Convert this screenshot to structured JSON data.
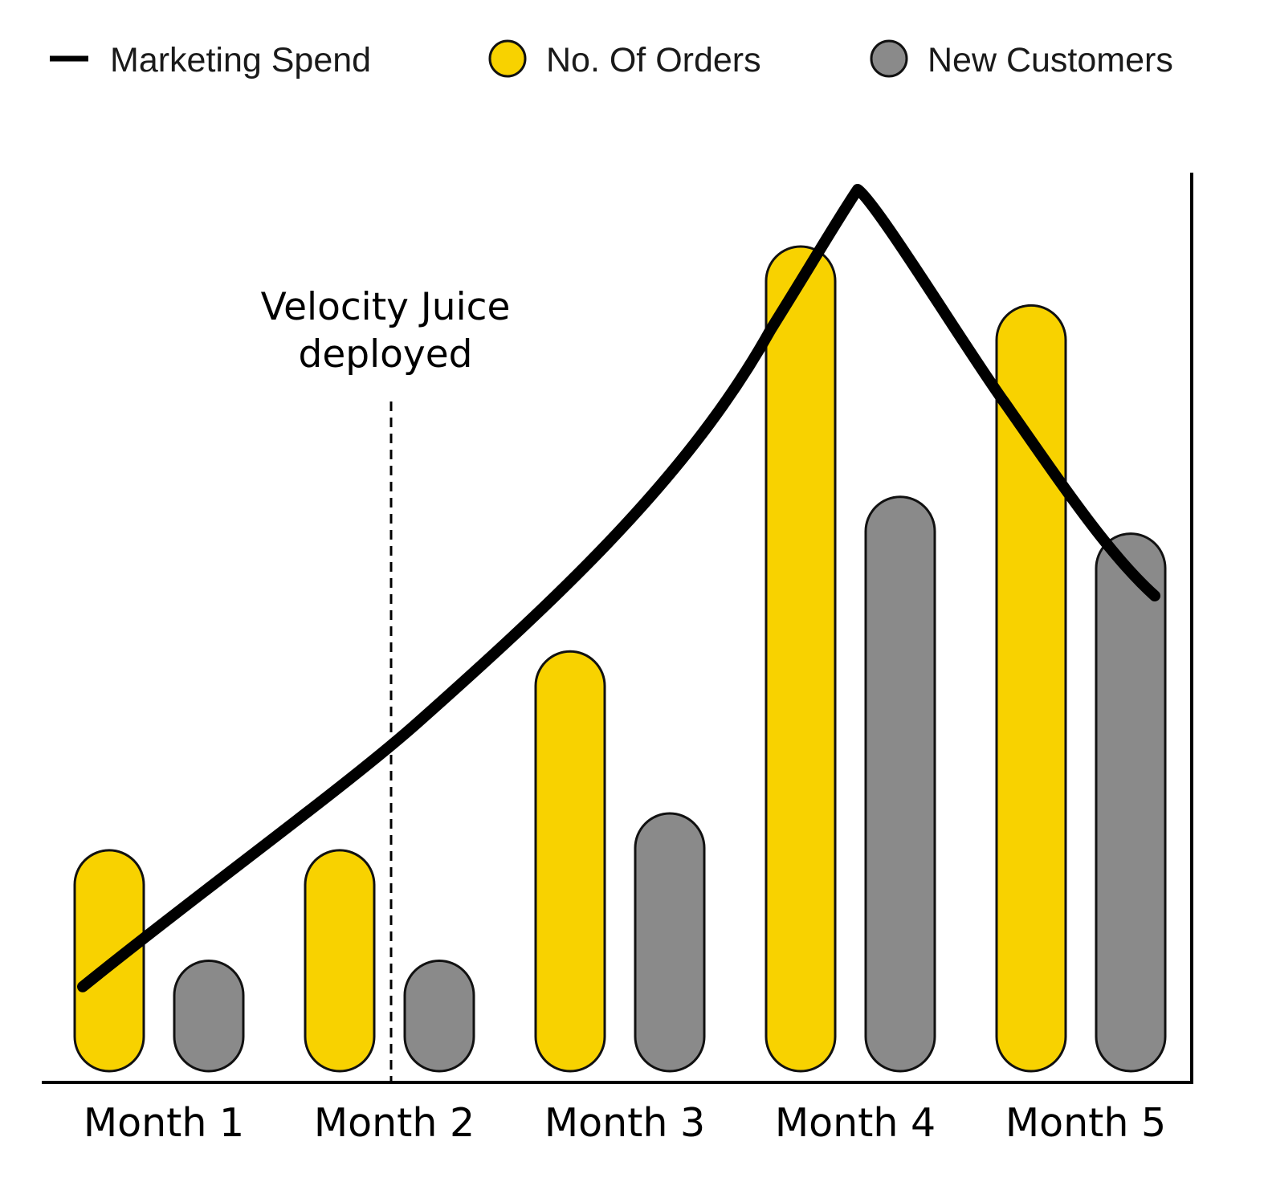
{
  "chart_data": {
    "type": "bar",
    "categories": [
      "Month 1",
      "Month 2",
      "Month 3",
      "Month 4",
      "Month 5"
    ],
    "series": [
      {
        "name": "No. Of Orders",
        "kind": "bar",
        "color": "#f8d200",
        "values": [
          30,
          30,
          57,
          112,
          104
        ]
      },
      {
        "name": "New Customers",
        "kind": "bar",
        "color": "#8a8a8a",
        "values": [
          15,
          15,
          35,
          78,
          73
        ]
      },
      {
        "name": "Marketing Spend",
        "kind": "line",
        "color": "#000000",
        "values": [
          13,
          45,
          82,
          115,
          62
        ]
      }
    ],
    "ylim": [
      0,
      120
    ],
    "annotation": {
      "lines": [
        "Velocity Juice",
        "deployed"
      ],
      "category": "Month 2"
    },
    "legend_position": "top",
    "grid": false,
    "axis_color": "#000000",
    "outline_color": "#111111"
  }
}
